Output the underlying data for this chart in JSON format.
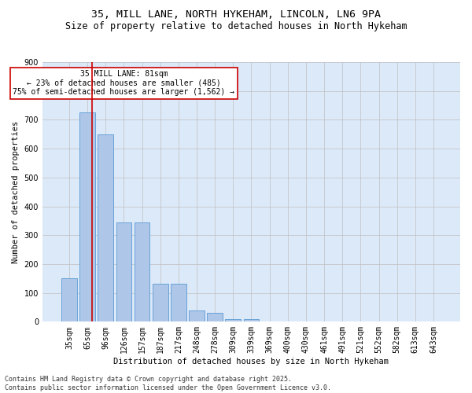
{
  "title1": "35, MILL LANE, NORTH HYKEHAM, LINCOLN, LN6 9PA",
  "title2": "Size of property relative to detached houses in North Hykeham",
  "xlabel": "Distribution of detached houses by size in North Hykeham",
  "ylabel": "Number of detached properties",
  "categories": [
    "35sqm",
    "65sqm",
    "96sqm",
    "126sqm",
    "157sqm",
    "187sqm",
    "217sqm",
    "248sqm",
    "278sqm",
    "309sqm",
    "339sqm",
    "369sqm",
    "400sqm",
    "430sqm",
    "461sqm",
    "491sqm",
    "521sqm",
    "552sqm",
    "582sqm",
    "613sqm",
    "643sqm"
  ],
  "values": [
    150,
    725,
    650,
    345,
    345,
    132,
    132,
    40,
    30,
    10,
    8,
    0,
    0,
    0,
    0,
    0,
    0,
    0,
    0,
    0,
    0
  ],
  "bar_color": "#aec6e8",
  "bar_edge_color": "#5b9bd5",
  "vline_x": 1.27,
  "vline_color": "#cc0000",
  "annotation_text": "35 MILL LANE: 81sqm\n← 23% of detached houses are smaller (485)\n75% of semi-detached houses are larger (1,562) →",
  "annotation_box_color": "#ffffff",
  "annotation_border_color": "#cc0000",
  "ylim": [
    0,
    900
  ],
  "yticks": [
    0,
    100,
    200,
    300,
    400,
    500,
    600,
    700,
    800,
    900
  ],
  "background_color": "#dce9f8",
  "footer_text": "Contains HM Land Registry data © Crown copyright and database right 2025.\nContains public sector information licensed under the Open Government Licence v3.0.",
  "title1_fontsize": 9.5,
  "title2_fontsize": 8.5,
  "axis_label_fontsize": 7.5,
  "tick_fontsize": 7,
  "annotation_fontsize": 7,
  "footer_fontsize": 6
}
